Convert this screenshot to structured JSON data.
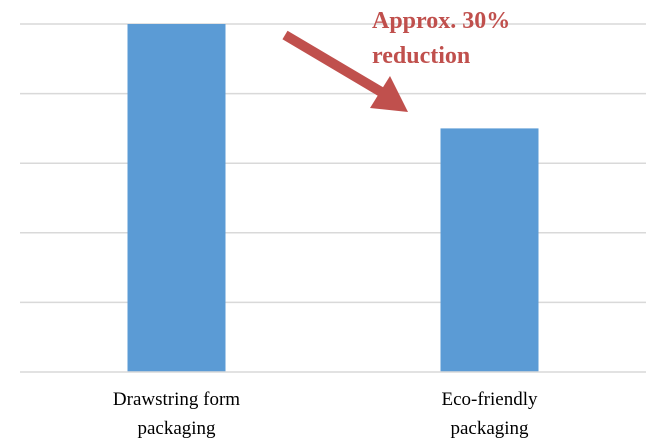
{
  "chart_data": {
    "type": "bar",
    "categories": [
      [
        "Drawstring form",
        "packaging"
      ],
      [
        "Eco-friendly",
        "packaging"
      ]
    ],
    "values": [
      100,
      70
    ],
    "title": "",
    "xlabel": "",
    "ylabel": "",
    "ylim": [
      0,
      100
    ],
    "grid": true,
    "bar_color": "#5b9bd5",
    "grid_color": "#d9d9d9",
    "annotation": {
      "lines": [
        "Approx. 30%",
        "reduction"
      ],
      "color": "#c0504d"
    }
  }
}
